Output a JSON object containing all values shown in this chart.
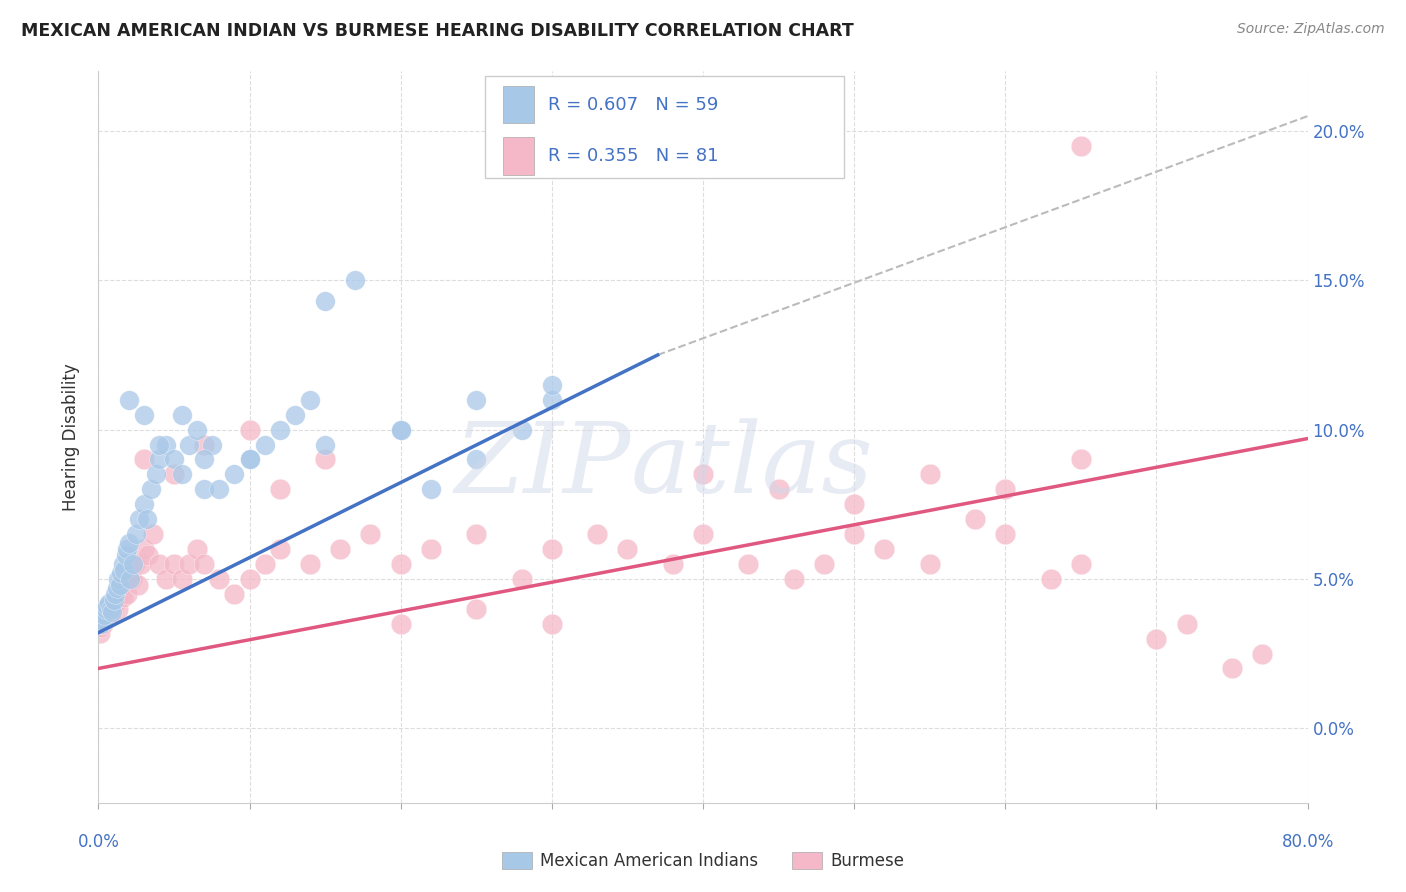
{
  "title": "MEXICAN AMERICAN INDIAN VS BURMESE HEARING DISABILITY CORRELATION CHART",
  "source": "Source: ZipAtlas.com",
  "ylabel": "Hearing Disability",
  "blue_color": "#a8c8e8",
  "pink_color": "#f4b8c8",
  "blue_line_color": "#4472C4",
  "pink_line_color": "#e05880",
  "dash_line_color": "#bbbbbb",
  "axis_color": "#4472C4",
  "xmin": 0.0,
  "xmax": 80.0,
  "ymin": -2.5,
  "ymax": 22.0,
  "yticks": [
    0,
    5,
    10,
    15,
    20
  ],
  "blue_line": [
    0.0,
    3.2,
    37.0,
    12.5
  ],
  "pink_line": [
    0.0,
    2.0,
    80.0,
    9.7
  ],
  "dash_line": [
    37.0,
    12.5,
    80.0,
    20.5
  ],
  "blue_x": [
    0.2,
    0.3,
    0.4,
    0.5,
    0.6,
    0.7,
    0.8,
    0.9,
    1.0,
    1.1,
    1.2,
    1.3,
    1.4,
    1.5,
    1.6,
    1.7,
    1.8,
    1.9,
    2.0,
    2.1,
    2.3,
    2.5,
    2.7,
    3.0,
    3.2,
    3.5,
    3.8,
    4.0,
    4.5,
    5.0,
    5.5,
    6.0,
    6.5,
    7.0,
    7.5,
    8.0,
    9.0,
    10.0,
    11.0,
    12.0,
    13.0,
    14.0,
    15.0,
    17.0,
    20.0,
    22.0,
    25.0,
    28.0,
    30.0,
    2.0,
    3.0,
    4.0,
    5.5,
    7.0,
    10.0,
    15.0,
    20.0,
    25.0,
    30.0
  ],
  "blue_y": [
    3.5,
    3.6,
    3.8,
    4.0,
    4.1,
    4.2,
    4.0,
    3.9,
    4.3,
    4.5,
    4.7,
    5.0,
    4.8,
    5.2,
    5.5,
    5.3,
    5.8,
    6.0,
    6.2,
    5.0,
    5.5,
    6.5,
    7.0,
    7.5,
    7.0,
    8.0,
    8.5,
    9.0,
    9.5,
    9.0,
    8.5,
    9.5,
    10.0,
    8.0,
    9.5,
    8.0,
    8.5,
    9.0,
    9.5,
    10.0,
    10.5,
    11.0,
    14.3,
    15.0,
    10.0,
    8.0,
    9.0,
    10.0,
    11.0,
    11.0,
    10.5,
    9.5,
    10.5,
    9.0,
    9.0,
    9.5,
    10.0,
    11.0,
    11.5
  ],
  "pink_x": [
    0.1,
    0.2,
    0.3,
    0.4,
    0.5,
    0.6,
    0.7,
    0.8,
    0.9,
    1.0,
    1.1,
    1.2,
    1.3,
    1.4,
    1.5,
    1.6,
    1.7,
    1.8,
    1.9,
    2.0,
    2.2,
    2.4,
    2.6,
    2.8,
    3.0,
    3.3,
    3.6,
    4.0,
    4.5,
    5.0,
    5.5,
    6.0,
    6.5,
    7.0,
    8.0,
    9.0,
    10.0,
    11.0,
    12.0,
    14.0,
    16.0,
    18.0,
    20.0,
    22.0,
    25.0,
    28.0,
    30.0,
    33.0,
    35.0,
    38.0,
    40.0,
    43.0,
    46.0,
    48.0,
    50.0,
    52.0,
    55.0,
    58.0,
    60.0,
    63.0,
    65.0,
    40.0,
    45.0,
    50.0,
    55.0,
    60.0,
    65.0,
    70.0,
    72.0,
    75.0,
    77.0,
    3.0,
    5.0,
    7.0,
    10.0,
    12.0,
    15.0,
    20.0,
    25.0,
    30.0,
    65.0
  ],
  "pink_y": [
    3.2,
    3.4,
    3.5,
    3.6,
    3.8,
    3.7,
    3.9,
    3.8,
    4.0,
    4.1,
    4.2,
    4.3,
    4.0,
    4.5,
    4.7,
    4.4,
    4.8,
    5.0,
    4.5,
    5.2,
    5.0,
    5.5,
    4.8,
    5.5,
    6.0,
    5.8,
    6.5,
    5.5,
    5.0,
    5.5,
    5.0,
    5.5,
    6.0,
    5.5,
    5.0,
    4.5,
    5.0,
    5.5,
    6.0,
    5.5,
    6.0,
    6.5,
    5.5,
    6.0,
    6.5,
    5.0,
    6.0,
    6.5,
    6.0,
    5.5,
    6.5,
    5.5,
    5.0,
    5.5,
    6.5,
    6.0,
    5.5,
    7.0,
    6.5,
    5.0,
    5.5,
    8.5,
    8.0,
    7.5,
    8.5,
    8.0,
    9.0,
    3.0,
    3.5,
    2.0,
    2.5,
    9.0,
    8.5,
    9.5,
    10.0,
    8.0,
    9.0,
    3.5,
    4.0,
    3.5,
    19.5
  ]
}
